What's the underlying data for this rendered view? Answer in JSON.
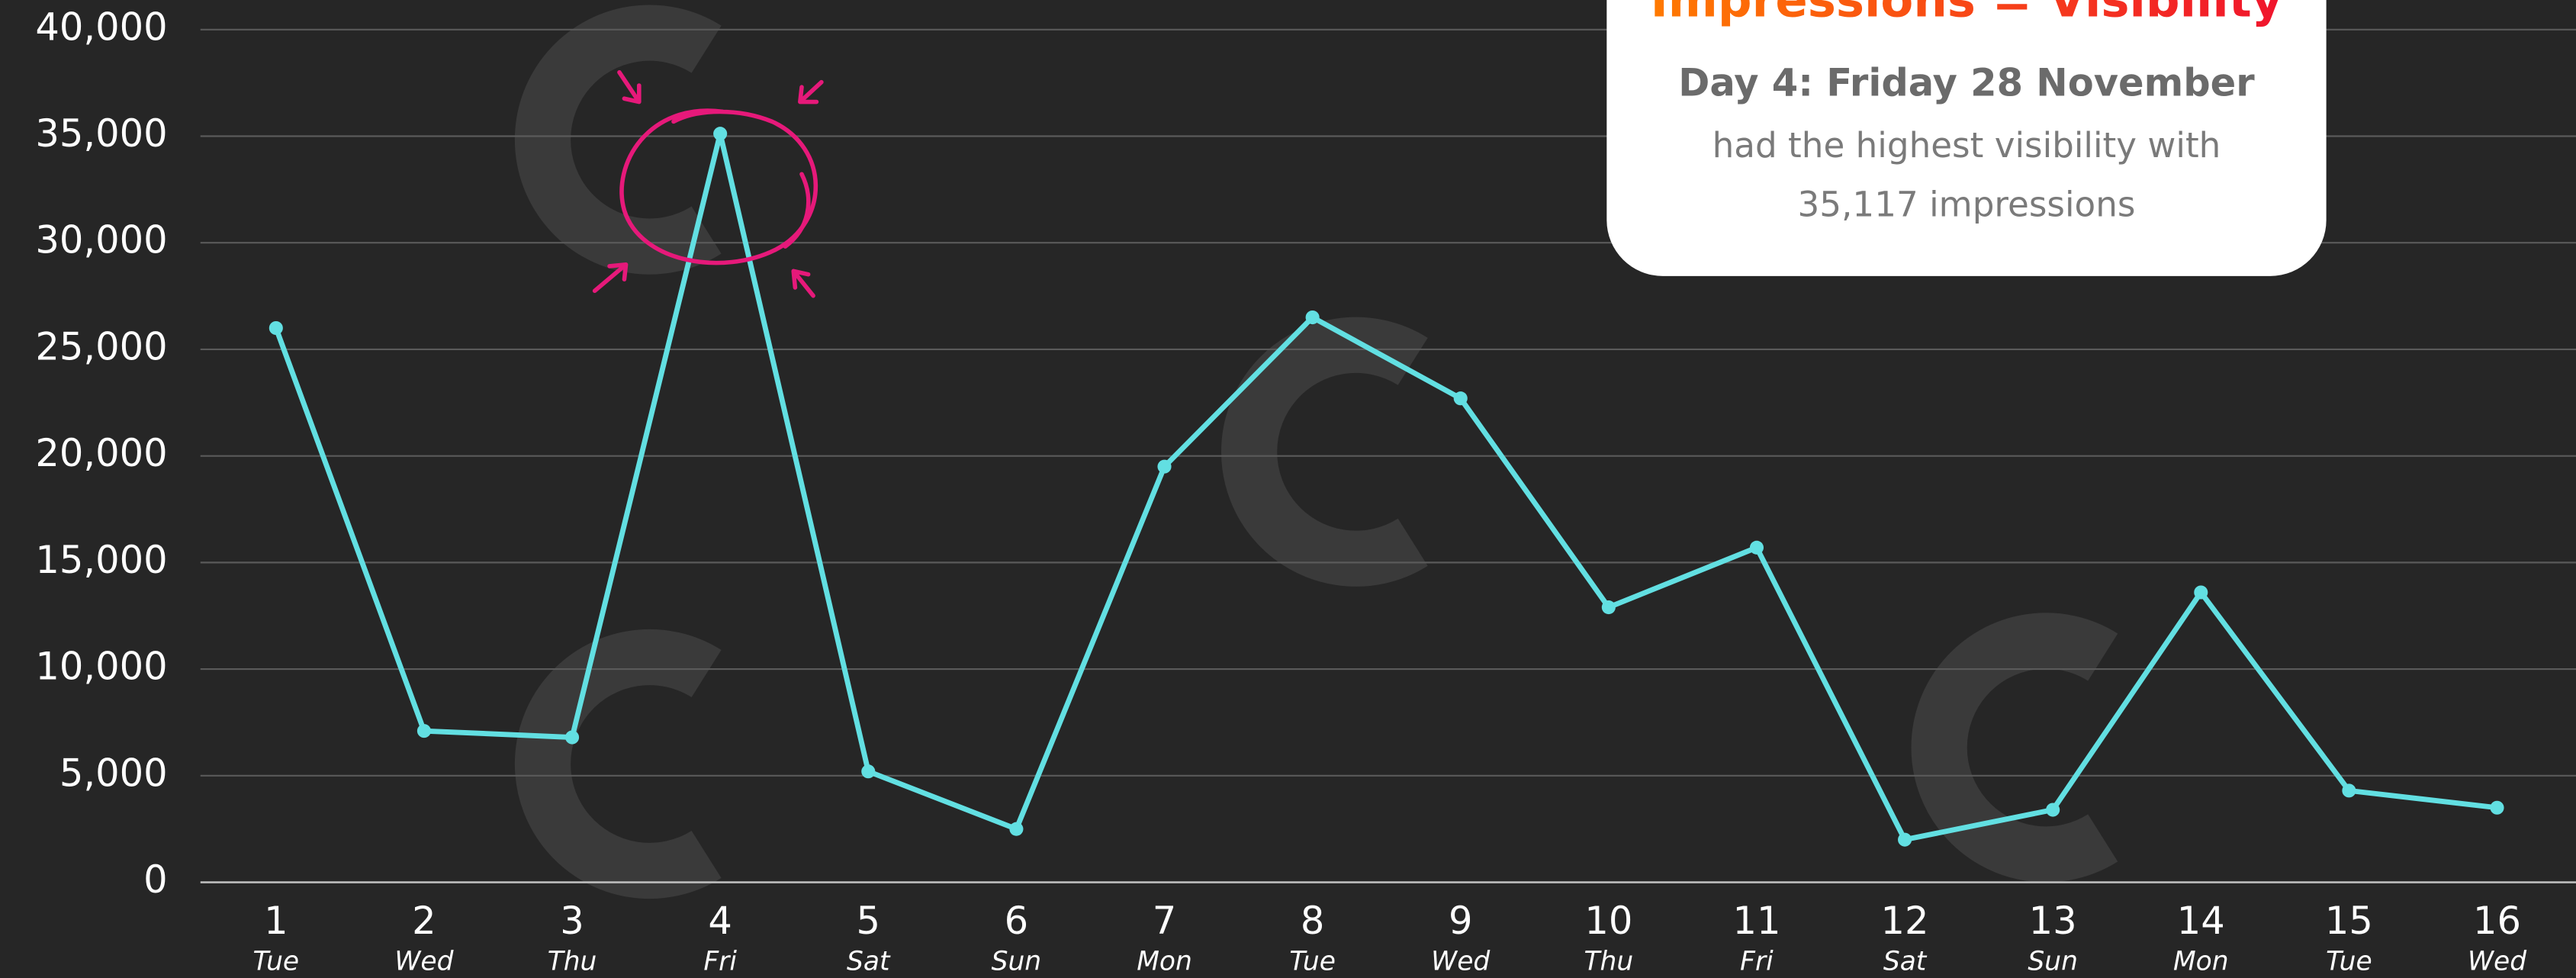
{
  "chart_data": {
    "type": "line",
    "categories": [
      "1",
      "2",
      "3",
      "4",
      "5",
      "6",
      "7",
      "8",
      "9",
      "10",
      "11",
      "12",
      "13",
      "14",
      "15",
      "16"
    ],
    "weekdays": [
      "Tue",
      "Wed",
      "Thu",
      "Fri",
      "Sat",
      "Sun",
      "Mon",
      "Tue",
      "Wed",
      "Thu",
      "Fri",
      "Sat",
      "Sun",
      "Mon",
      "Tue",
      "Wed"
    ],
    "series": [
      {
        "color": "#62dfe2",
        "values": [
          26000,
          7100,
          6800,
          35117,
          5200,
          2500,
          19500,
          26500,
          22700,
          12900,
          15700,
          2000,
          3400,
          13600,
          4300,
          3500
        ]
      }
    ],
    "ylim": [
      0,
      40000
    ],
    "yticks": [
      0,
      {
        "value": 5000,
        "label": "5,000"
      },
      {
        "value": 10000,
        "label": "10,000"
      },
      {
        "value": 15000,
        "label": "15,000"
      },
      {
        "value": 20000,
        "label": "20,000"
      },
      {
        "value": 25000,
        "label": "25,000"
      },
      {
        "value": 30000,
        "label": "30,000"
      },
      {
        "value": 35000,
        "label": "35,000"
      },
      {
        "value": 40000,
        "label": "40,000"
      }
    ],
    "grid": true,
    "annotation": {
      "title": "Impressions = Visibility",
      "heading": "Day 4: Friday 28 November",
      "lines": [
        "had the highest visibility with",
        "35,117 impressions"
      ]
    }
  }
}
